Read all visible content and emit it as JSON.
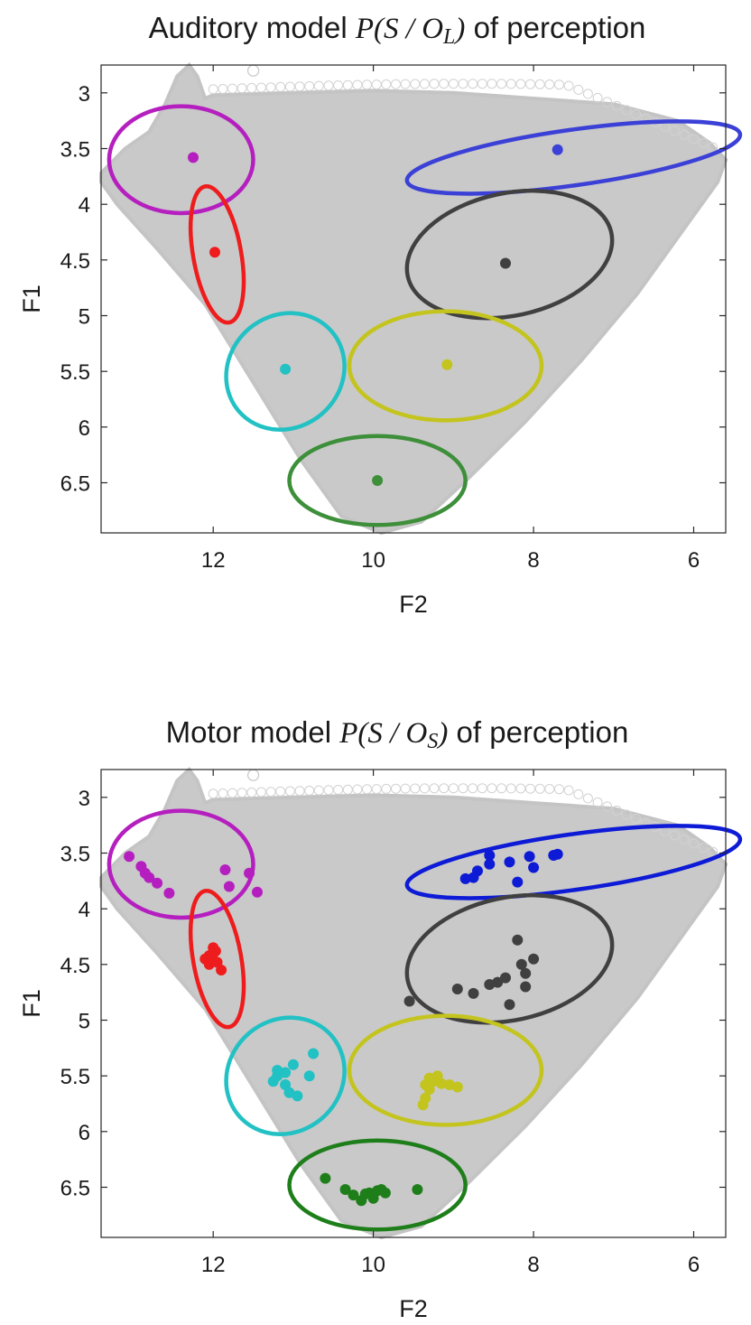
{
  "chart_data": [
    {
      "type": "scatter",
      "title_prefix": "Auditory model ",
      "title_math": "P(S / O",
      "title_sub": "L",
      "title_math_end": ")",
      "title_suffix": " of perception",
      "xlabel": "F2",
      "ylabel": "F1",
      "xlim": [
        13.4,
        5.6
      ],
      "ylim": [
        6.95,
        2.75
      ],
      "x_reversed": true,
      "y_reversed": true,
      "xticks": [
        12,
        10,
        8,
        6
      ],
      "yticks": [
        3,
        3.5,
        4,
        4.5,
        5,
        5.5,
        6,
        6.5
      ],
      "grid": false,
      "legend": "none",
      "categories": [
        {
          "color": "#b51fbf",
          "ellipse": {
            "cx": 12.4,
            "cy": 3.6,
            "rx": 0.9,
            "ry": 0.48,
            "angle": 0
          },
          "points": [
            [
              12.25,
              3.58
            ]
          ]
        },
        {
          "color": "#ee1c1c",
          "ellipse": {
            "cx": 11.95,
            "cy": 4.45,
            "rx": 0.3,
            "ry": 0.62,
            "angle": -10
          },
          "points": [
            [
              11.98,
              4.43
            ]
          ]
        },
        {
          "color": "#21c1c4",
          "ellipse": {
            "cx": 11.1,
            "cy": 5.5,
            "rx": 0.7,
            "ry": 0.55,
            "angle": 50
          },
          "points": [
            [
              11.1,
              5.48
            ]
          ]
        },
        {
          "color": "#3b40d6",
          "ellipse": {
            "cx": 7.5,
            "cy": 3.58,
            "rx": 2.1,
            "ry": 0.25,
            "angle": -8
          },
          "points": [
            [
              7.7,
              3.51
            ]
          ]
        },
        {
          "color": "#404040",
          "ellipse": {
            "cx": 8.3,
            "cy": 4.45,
            "rx": 1.3,
            "ry": 0.55,
            "angle": -12
          },
          "points": [
            [
              8.35,
              4.53
            ]
          ]
        },
        {
          "color": "#c4c41e",
          "ellipse": {
            "cx": 9.1,
            "cy": 5.45,
            "rx": 1.2,
            "ry": 0.49,
            "angle": 0
          },
          "points": [
            [
              9.08,
              5.44
            ]
          ]
        },
        {
          "color": "#3d8f3a",
          "ellipse": {
            "cx": 9.95,
            "cy": 6.48,
            "rx": 1.1,
            "ry": 0.4,
            "angle": 0
          },
          "points": [
            [
              9.95,
              6.48
            ]
          ]
        }
      ]
    },
    {
      "type": "scatter",
      "title_prefix": "Motor model ",
      "title_math": "P(S / O",
      "title_sub": "S",
      "title_math_end": ")",
      "title_suffix": " of perception",
      "xlabel": "F2",
      "ylabel": "F1",
      "xlim": [
        13.4,
        5.6
      ],
      "ylim": [
        6.95,
        2.75
      ],
      "x_reversed": true,
      "y_reversed": true,
      "xticks": [
        12,
        10,
        8,
        6
      ],
      "yticks": [
        3,
        3.5,
        4,
        4.5,
        5,
        5.5,
        6,
        6.5
      ],
      "grid": false,
      "legend": "none",
      "categories": [
        {
          "color": "#b51fbf",
          "ellipse": {
            "cx": 12.4,
            "cy": 3.6,
            "rx": 0.9,
            "ry": 0.48,
            "angle": 0
          },
          "points": [
            [
              13.05,
              3.53
            ],
            [
              12.9,
              3.62
            ],
            [
              12.85,
              3.68
            ],
            [
              12.8,
              3.72
            ],
            [
              12.7,
              3.77
            ],
            [
              12.55,
              3.86
            ],
            [
              11.85,
              3.65
            ],
            [
              11.55,
              3.68
            ],
            [
              11.8,
              3.8
            ],
            [
              11.45,
              3.85
            ]
          ]
        },
        {
          "color": "#ee1c1c",
          "ellipse": {
            "cx": 11.95,
            "cy": 4.45,
            "rx": 0.3,
            "ry": 0.62,
            "angle": -10
          },
          "points": [
            [
              12.0,
              4.35
            ],
            [
              12.05,
              4.42
            ],
            [
              12.1,
              4.45
            ],
            [
              11.95,
              4.48
            ],
            [
              12.0,
              4.4
            ],
            [
              11.9,
              4.55
            ],
            [
              12.05,
              4.5
            ],
            [
              11.97,
              4.38
            ]
          ]
        },
        {
          "color": "#21c1c4",
          "ellipse": {
            "cx": 11.1,
            "cy": 5.5,
            "rx": 0.7,
            "ry": 0.55,
            "angle": 50
          },
          "points": [
            [
              10.75,
              5.3
            ],
            [
              11.2,
              5.45
            ],
            [
              11.1,
              5.47
            ],
            [
              11.0,
              5.4
            ],
            [
              11.25,
              5.55
            ],
            [
              10.8,
              5.5
            ],
            [
              11.1,
              5.58
            ],
            [
              11.05,
              5.65
            ],
            [
              10.95,
              5.68
            ],
            [
              11.2,
              5.5
            ]
          ]
        },
        {
          "color": "#0d1ad6",
          "ellipse": {
            "cx": 7.5,
            "cy": 3.58,
            "rx": 2.1,
            "ry": 0.25,
            "angle": -8
          },
          "points": [
            [
              8.55,
              3.52
            ],
            [
              8.3,
              3.58
            ],
            [
              8.05,
              3.53
            ],
            [
              7.75,
              3.52
            ],
            [
              7.7,
              3.51
            ],
            [
              8.0,
              3.63
            ],
            [
              8.55,
              3.6
            ],
            [
              8.7,
              3.66
            ],
            [
              8.85,
              3.73
            ],
            [
              8.75,
              3.72
            ],
            [
              8.2,
              3.76
            ]
          ]
        },
        {
          "color": "#404040",
          "ellipse": {
            "cx": 8.3,
            "cy": 4.45,
            "rx": 1.3,
            "ry": 0.55,
            "angle": -12
          },
          "points": [
            [
              8.2,
              4.28
            ],
            [
              8.15,
              4.5
            ],
            [
              8.0,
              4.45
            ],
            [
              8.1,
              4.58
            ],
            [
              8.35,
              4.62
            ],
            [
              8.45,
              4.66
            ],
            [
              8.55,
              4.68
            ],
            [
              8.95,
              4.72
            ],
            [
              8.75,
              4.76
            ],
            [
              8.1,
              4.7
            ],
            [
              8.3,
              4.86
            ],
            [
              9.55,
              4.83
            ]
          ]
        },
        {
          "color": "#c4c41e",
          "ellipse": {
            "cx": 9.1,
            "cy": 5.45,
            "rx": 1.2,
            "ry": 0.49,
            "angle": 0
          },
          "points": [
            [
              9.3,
              5.52
            ],
            [
              9.2,
              5.5
            ],
            [
              9.25,
              5.55
            ],
            [
              9.35,
              5.58
            ],
            [
              9.15,
              5.57
            ],
            [
              9.05,
              5.58
            ],
            [
              8.95,
              5.6
            ],
            [
              9.3,
              5.62
            ],
            [
              9.35,
              5.7
            ],
            [
              9.38,
              5.76
            ]
          ]
        },
        {
          "color": "#1e7e1a",
          "ellipse": {
            "cx": 9.95,
            "cy": 6.48,
            "rx": 1.1,
            "ry": 0.4,
            "angle": 0
          },
          "points": [
            [
              10.6,
              6.42
            ],
            [
              10.35,
              6.52
            ],
            [
              10.25,
              6.57
            ],
            [
              10.15,
              6.62
            ],
            [
              10.05,
              6.55
            ],
            [
              9.95,
              6.53
            ],
            [
              9.85,
              6.55
            ],
            [
              10.0,
              6.6
            ],
            [
              10.1,
              6.56
            ],
            [
              9.9,
              6.52
            ],
            [
              9.45,
              6.52
            ]
          ]
        }
      ]
    }
  ]
}
